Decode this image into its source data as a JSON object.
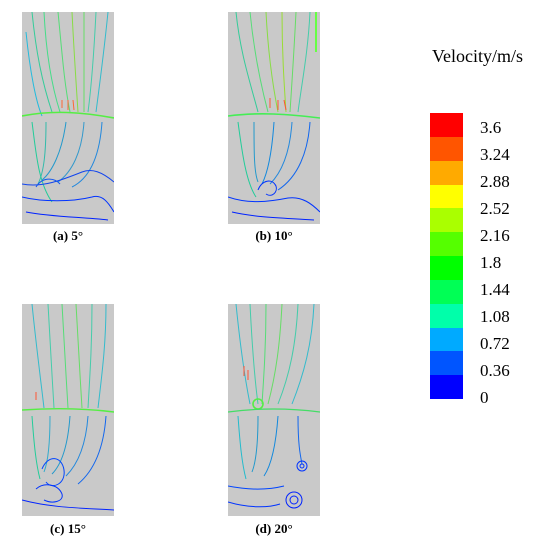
{
  "panels": [
    {
      "id": "a",
      "caption": "(a) 5°"
    },
    {
      "id": "b",
      "caption": "(b) 10°"
    },
    {
      "id": "c",
      "caption": "(c) 15°"
    },
    {
      "id": "d",
      "caption": "(d) 20°"
    }
  ],
  "legend": {
    "title": "Velocity/m/s",
    "labels": [
      "3.6",
      "3.24",
      "2.88",
      "2.52",
      "2.16",
      "1.8",
      "1.44",
      "1.08",
      "0.72",
      "0.36",
      "0"
    ],
    "colors": [
      "#ff0000",
      "#ff5500",
      "#ffaa00",
      "#ffff00",
      "#aaff00",
      "#55ff00",
      "#00ff00",
      "#00ff55",
      "#00ffaa",
      "#00aaff",
      "#0055ff",
      "#0000ff"
    ]
  }
}
